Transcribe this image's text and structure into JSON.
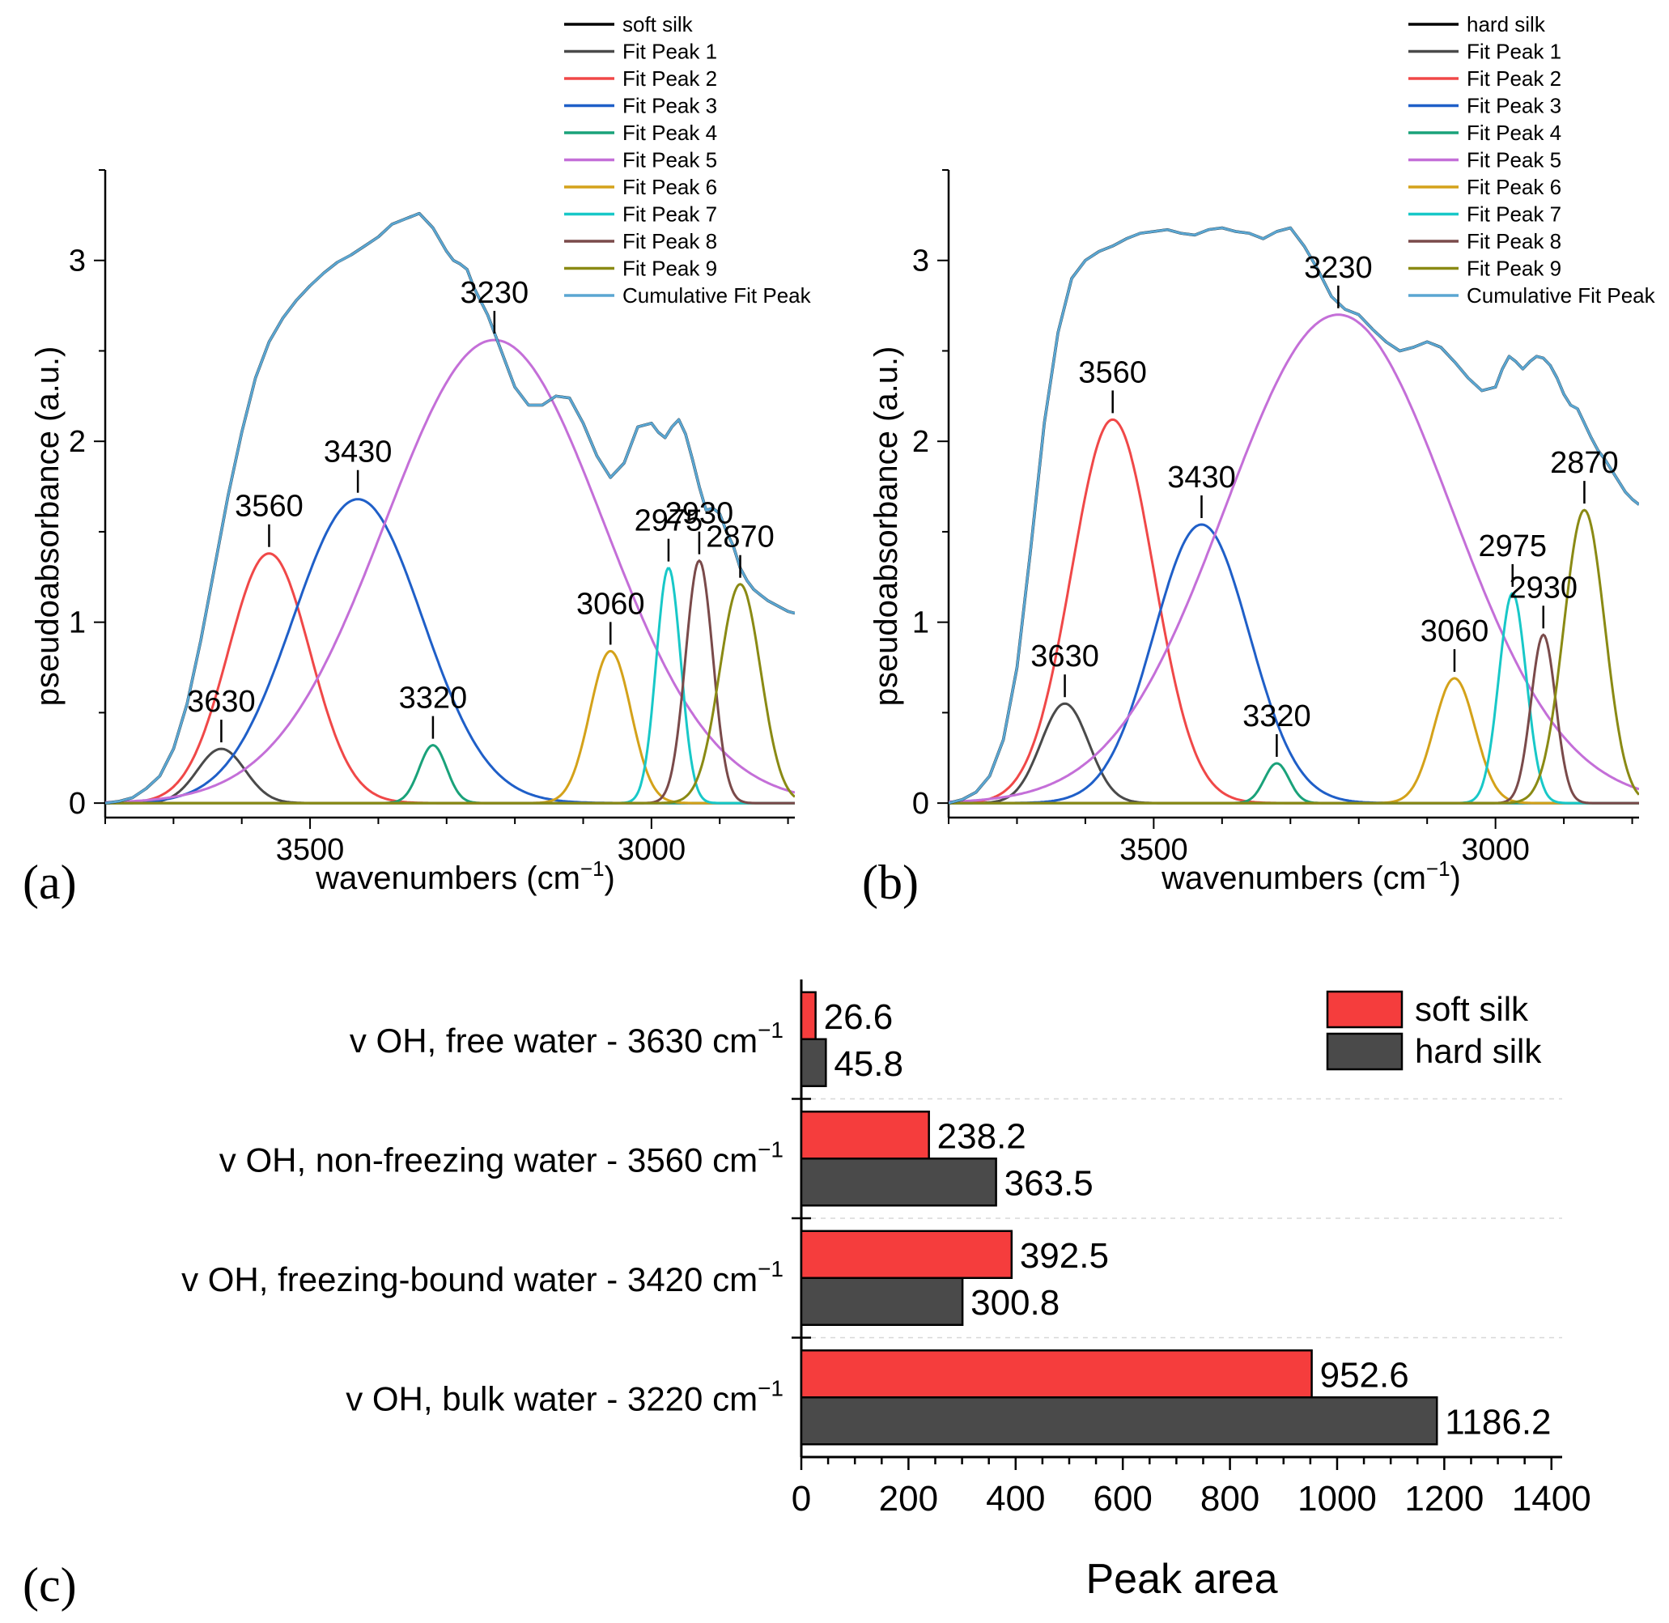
{
  "chart_data": [
    {
      "type": "line",
      "panel_label": "(a)",
      "sample": "soft silk",
      "xlabel": "wavenumbers (cm",
      "xlabel_sup": "−1",
      "xlabel_close": ")",
      "ylabel": "pseudoabsorbance (a.u.)",
      "xlim": [
        3800,
        2790
      ],
      "ylim": [
        -0.08,
        3.5
      ],
      "xticks": [
        3500,
        3000
      ],
      "xtick_labels": [
        "3500",
        "3000"
      ],
      "yticks": [
        0,
        1,
        2,
        3
      ],
      "ytick_labels": [
        "0",
        "1",
        "2",
        "3"
      ],
      "legend": [
        "soft silk",
        "Fit Peak 1",
        "Fit Peak 2",
        "Fit Peak 3",
        "Fit Peak 4",
        "Fit Peak 5",
        "Fit Peak 6",
        "Fit Peak 7",
        "Fit Peak 8",
        "Fit Peak 9",
        "Cumulative Fit Peak"
      ],
      "measured": {
        "name": "soft silk",
        "color": "#000000",
        "x": [
          3800,
          3780,
          3760,
          3740,
          3720,
          3700,
          3680,
          3660,
          3640,
          3620,
          3600,
          3580,
          3560,
          3540,
          3520,
          3500,
          3480,
          3460,
          3440,
          3420,
          3400,
          3380,
          3360,
          3340,
          3320,
          3300,
          3290,
          3280,
          3270,
          3260,
          3240,
          3220,
          3200,
          3180,
          3160,
          3140,
          3120,
          3100,
          3080,
          3060,
          3040,
          3020,
          3000,
          2990,
          2980,
          2970,
          2960,
          2950,
          2940,
          2930,
          2920,
          2910,
          2900,
          2890,
          2880,
          2870,
          2860,
          2850,
          2840,
          2830,
          2820,
          2810,
          2800,
          2790
        ],
        "y": [
          0.0,
          0.01,
          0.03,
          0.08,
          0.15,
          0.3,
          0.55,
          0.9,
          1.3,
          1.7,
          2.05,
          2.35,
          2.55,
          2.68,
          2.78,
          2.86,
          2.93,
          2.99,
          3.03,
          3.08,
          3.13,
          3.2,
          3.23,
          3.26,
          3.18,
          3.05,
          3.0,
          2.98,
          2.95,
          2.85,
          2.7,
          2.5,
          2.3,
          2.2,
          2.2,
          2.25,
          2.24,
          2.1,
          1.92,
          1.8,
          1.88,
          2.08,
          2.1,
          2.05,
          2.02,
          2.08,
          2.12,
          2.04,
          1.9,
          1.75,
          1.62,
          1.63,
          1.6,
          1.5,
          1.42,
          1.3,
          1.23,
          1.18,
          1.15,
          1.12,
          1.1,
          1.08,
          1.06,
          1.05
        ]
      },
      "fit_peaks": [
        {
          "name": "Fit Peak 1",
          "center": 3630,
          "amp": 0.3,
          "sigma": 35,
          "color": "#4a4a4a"
        },
        {
          "name": "Fit Peak 2",
          "center": 3560,
          "amp": 1.38,
          "sigma": 60,
          "color": "#f04848"
        },
        {
          "name": "Fit Peak 3",
          "center": 3430,
          "amp": 1.68,
          "sigma": 95,
          "color": "#1f5fc8"
        },
        {
          "name": "Fit Peak 4",
          "center": 3320,
          "amp": 0.32,
          "sigma": 20,
          "color": "#1aa27a"
        },
        {
          "name": "Fit Peak 5",
          "center": 3230,
          "amp": 2.56,
          "sigma": 160,
          "color": "#c46fd8"
        },
        {
          "name": "Fit Peak 6",
          "center": 3060,
          "amp": 0.84,
          "sigma": 30,
          "color": "#d4a21a"
        },
        {
          "name": "Fit Peak 7",
          "center": 2975,
          "amp": 1.3,
          "sigma": 18,
          "color": "#18c8c8"
        },
        {
          "name": "Fit Peak 8",
          "center": 2930,
          "amp": 1.34,
          "sigma": 20,
          "color": "#7a4a4a"
        },
        {
          "name": "Fit Peak 9",
          "center": 2870,
          "amp": 1.21,
          "sigma": 30,
          "color": "#8a8a14"
        }
      ],
      "cumulative": {
        "name": "Cumulative Fit Peak",
        "color": "#5aa6d2"
      },
      "annotations": [
        {
          "text": "3630",
          "x": 3630,
          "y": 0.3
        },
        {
          "text": "3560",
          "x": 3560,
          "y": 1.38
        },
        {
          "text": "3430",
          "x": 3430,
          "y": 1.68
        },
        {
          "text": "3320",
          "x": 3320,
          "y": 0.32
        },
        {
          "text": "3230",
          "x": 3230,
          "y": 2.56
        },
        {
          "text": "3060",
          "x": 3060,
          "y": 0.84
        },
        {
          "text": "2975",
          "x": 2975,
          "y": 1.3
        },
        {
          "text": "2930",
          "x": 2930,
          "y": 1.34
        },
        {
          "text": "2870",
          "x": 2870,
          "y": 1.21
        }
      ]
    },
    {
      "type": "line",
      "panel_label": "(b)",
      "sample": "hard silk",
      "xlabel": "wavenumbers (cm",
      "xlabel_sup": "−1",
      "xlabel_close": ")",
      "ylabel": "pseudoabsorbance (a.u.)",
      "xlim": [
        3800,
        2790
      ],
      "ylim": [
        -0.08,
        3.5
      ],
      "xticks": [
        3500,
        3000
      ],
      "xtick_labels": [
        "3500",
        "3000"
      ],
      "yticks": [
        0,
        1,
        2,
        3
      ],
      "ytick_labels": [
        "0",
        "1",
        "2",
        "3"
      ],
      "legend": [
        "hard silk",
        "Fit Peak 1",
        "Fit Peak 2",
        "Fit Peak 3",
        "Fit Peak 4",
        "Fit Peak 5",
        "Fit Peak 6",
        "Fit Peak 7",
        "Fit Peak 8",
        "Fit Peak 9",
        "Cumulative Fit Peak"
      ],
      "measured": {
        "name": "hard silk",
        "color": "#000000",
        "x": [
          3800,
          3780,
          3760,
          3740,
          3720,
          3700,
          3680,
          3660,
          3640,
          3620,
          3600,
          3580,
          3560,
          3540,
          3520,
          3500,
          3480,
          3460,
          3440,
          3420,
          3400,
          3380,
          3360,
          3340,
          3320,
          3300,
          3280,
          3260,
          3240,
          3220,
          3200,
          3180,
          3160,
          3140,
          3120,
          3100,
          3080,
          3060,
          3040,
          3020,
          3000,
          2990,
          2980,
          2970,
          2960,
          2950,
          2940,
          2930,
          2920,
          2910,
          2900,
          2890,
          2880,
          2870,
          2860,
          2850,
          2840,
          2830,
          2820,
          2810,
          2800,
          2790
        ],
        "y": [
          0.0,
          0.02,
          0.06,
          0.15,
          0.35,
          0.75,
          1.4,
          2.1,
          2.6,
          2.9,
          3.0,
          3.05,
          3.08,
          3.12,
          3.15,
          3.16,
          3.17,
          3.15,
          3.14,
          3.17,
          3.18,
          3.16,
          3.15,
          3.12,
          3.16,
          3.18,
          3.08,
          2.95,
          2.8,
          2.73,
          2.7,
          2.62,
          2.55,
          2.5,
          2.52,
          2.55,
          2.52,
          2.44,
          2.35,
          2.28,
          2.3,
          2.4,
          2.47,
          2.44,
          2.4,
          2.44,
          2.47,
          2.46,
          2.42,
          2.35,
          2.26,
          2.2,
          2.18,
          2.1,
          2.02,
          1.95,
          1.9,
          1.84,
          1.78,
          1.72,
          1.68,
          1.65
        ]
      },
      "fit_peaks": [
        {
          "name": "Fit Peak 1",
          "center": 3630,
          "amp": 0.55,
          "sigma": 35,
          "color": "#4a4a4a"
        },
        {
          "name": "Fit Peak 2",
          "center": 3560,
          "amp": 2.12,
          "sigma": 60,
          "color": "#f04848"
        },
        {
          "name": "Fit Peak 3",
          "center": 3430,
          "amp": 1.54,
          "sigma": 70,
          "color": "#1f5fc8"
        },
        {
          "name": "Fit Peak 4",
          "center": 3320,
          "amp": 0.22,
          "sigma": 18,
          "color": "#1aa27a"
        },
        {
          "name": "Fit Peak 5",
          "center": 3230,
          "amp": 2.7,
          "sigma": 165,
          "color": "#c46fd8"
        },
        {
          "name": "Fit Peak 6",
          "center": 3060,
          "amp": 0.69,
          "sigma": 30,
          "color": "#d4a21a"
        },
        {
          "name": "Fit Peak 7",
          "center": 2975,
          "amp": 1.16,
          "sigma": 20,
          "color": "#18c8c8"
        },
        {
          "name": "Fit Peak 8",
          "center": 2930,
          "amp": 0.93,
          "sigma": 18,
          "color": "#7a4a4a"
        },
        {
          "name": "Fit Peak 9",
          "center": 2870,
          "amp": 1.62,
          "sigma": 30,
          "color": "#8a8a14"
        }
      ],
      "cumulative": {
        "name": "Cumulative Fit Peak",
        "color": "#5aa6d2"
      },
      "annotations": [
        {
          "text": "3630",
          "x": 3630,
          "y": 0.55
        },
        {
          "text": "3560",
          "x": 3560,
          "y": 2.12
        },
        {
          "text": "3430",
          "x": 3430,
          "y": 1.54
        },
        {
          "text": "3320",
          "x": 3320,
          "y": 0.22
        },
        {
          "text": "3230",
          "x": 3230,
          "y": 2.7
        },
        {
          "text": "3060",
          "x": 3060,
          "y": 0.69
        },
        {
          "text": "2975",
          "x": 2975,
          "y": 1.16
        },
        {
          "text": "2930",
          "x": 2930,
          "y": 0.93
        },
        {
          "text": "2870",
          "x": 2870,
          "y": 1.62
        }
      ]
    },
    {
      "type": "bar",
      "orientation": "horizontal",
      "panel_label": "(c)",
      "categories": [
        {
          "prefix": "v OH, free water - 3630 cm",
          "sup": "−1"
        },
        {
          "prefix": "v OH, non-freezing water - 3560 cm",
          "sup": "−1"
        },
        {
          "prefix": "v OH, freezing-bound water - 3420 cm",
          "sup": "−1"
        },
        {
          "prefix": "v OH, bulk water - 3220 cm",
          "sup": "−1"
        }
      ],
      "series": [
        {
          "name": "soft silk",
          "color": "#f53d3d",
          "values": [
            26.6,
            238.2,
            392.5,
            952.6
          ],
          "labels": [
            "26.6",
            "238.2",
            "392.5",
            "952.6"
          ]
        },
        {
          "name": "hard silk",
          "color": "#4a4a4a",
          "values": [
            45.8,
            363.5,
            300.8,
            1186.2
          ],
          "labels": [
            "45.8",
            "363.5",
            "300.8",
            "1186.2"
          ]
        }
      ],
      "xlabel": "Peak area",
      "xlim": [
        0,
        1420
      ],
      "xticks": [
        0,
        200,
        400,
        600,
        800,
        1000,
        1200,
        1400
      ],
      "xtick_labels": [
        "0",
        "200",
        "400",
        "600",
        "800",
        "1000",
        "1200",
        "1400"
      ],
      "legend_position": "top-right"
    }
  ]
}
